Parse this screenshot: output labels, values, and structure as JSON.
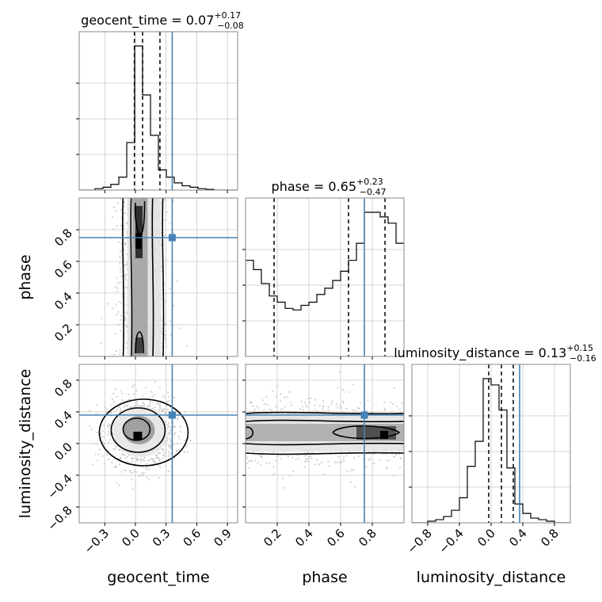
{
  "chart_data": {
    "type": "corner",
    "parameters": [
      "geocent_time",
      "phase",
      "luminosity_distance"
    ],
    "titles": [
      {
        "param": "geocent_time",
        "median": "0.07",
        "plus": "+0.17",
        "minus": "−0.08"
      },
      {
        "param": "phase",
        "median": "0.65",
        "plus": "+0.23",
        "minus": "−0.47"
      },
      {
        "param": "luminosity_distance",
        "median": "0.13",
        "plus": "+0.15",
        "minus": "−0.16"
      }
    ],
    "axis_labels": {
      "x": [
        "geocent_time",
        "phase",
        "luminosity_distance"
      ],
      "y": [
        "phase",
        "luminosity_distance"
      ]
    },
    "ranges": {
      "geocent_time": [
        -0.55,
        1.0
      ],
      "phase": [
        0.0,
        1.0
      ],
      "luminosity_distance": [
        -1.0,
        1.0
      ]
    },
    "ticks": {
      "geocent_time": {
        "values": [
          -0.3,
          0.0,
          0.3,
          0.6,
          0.9
        ],
        "labels": [
          "−0.3",
          "0.0",
          "0.3",
          "0.6",
          "0.9"
        ]
      },
      "phase": {
        "values": [
          0.2,
          0.4,
          0.6,
          0.8
        ],
        "labels": [
          "0.2",
          "0.4",
          "0.6",
          "0.8"
        ]
      },
      "luminosity_distance": {
        "values": [
          -0.8,
          -0.4,
          0.0,
          0.4,
          0.8
        ],
        "labels": [
          "−0.8",
          "−0.4",
          "0.0",
          "0.4",
          "0.8"
        ]
      }
    },
    "truths": {
      "geocent_time": 0.36,
      "phase": 0.75,
      "luminosity_distance": 0.36
    },
    "quantiles": {
      "geocent_time": [
        -0.01,
        0.07,
        0.24
      ],
      "phase": [
        0.18,
        0.65,
        0.88
      ],
      "luminosity_distance": [
        -0.03,
        0.13,
        0.28
      ]
    },
    "histograms": {
      "geocent_time": {
        "start": -0.55,
        "bin_width": 0.0775,
        "counts": [
          0.0,
          0.0,
          0.01,
          0.02,
          0.04,
          0.09,
          0.33,
          1.0,
          0.66,
          0.38,
          0.14,
          0.09,
          0.05,
          0.03,
          0.02,
          0.01,
          0.005,
          0.0,
          0.0,
          0.0
        ]
      },
      "phase": {
        "start": 0.0,
        "bin_width": 0.05,
        "counts": [
          0.62,
          0.56,
          0.47,
          0.39,
          0.35,
          0.31,
          0.3,
          0.33,
          0.35,
          0.4,
          0.44,
          0.49,
          0.55,
          0.62,
          0.73,
          0.93,
          0.93,
          0.9,
          0.86,
          0.73
        ]
      },
      "luminosity_distance": {
        "start": -1.0,
        "bin_width": 0.1,
        "counts": [
          0.0,
          0.0,
          0.01,
          0.02,
          0.04,
          0.08,
          0.16,
          0.36,
          0.52,
          0.92,
          0.88,
          0.72,
          0.35,
          0.12,
          0.06,
          0.03,
          0.02,
          0.01,
          0.0,
          0.0
        ]
      }
    },
    "truth_color": "#4682b4",
    "grid": true
  }
}
